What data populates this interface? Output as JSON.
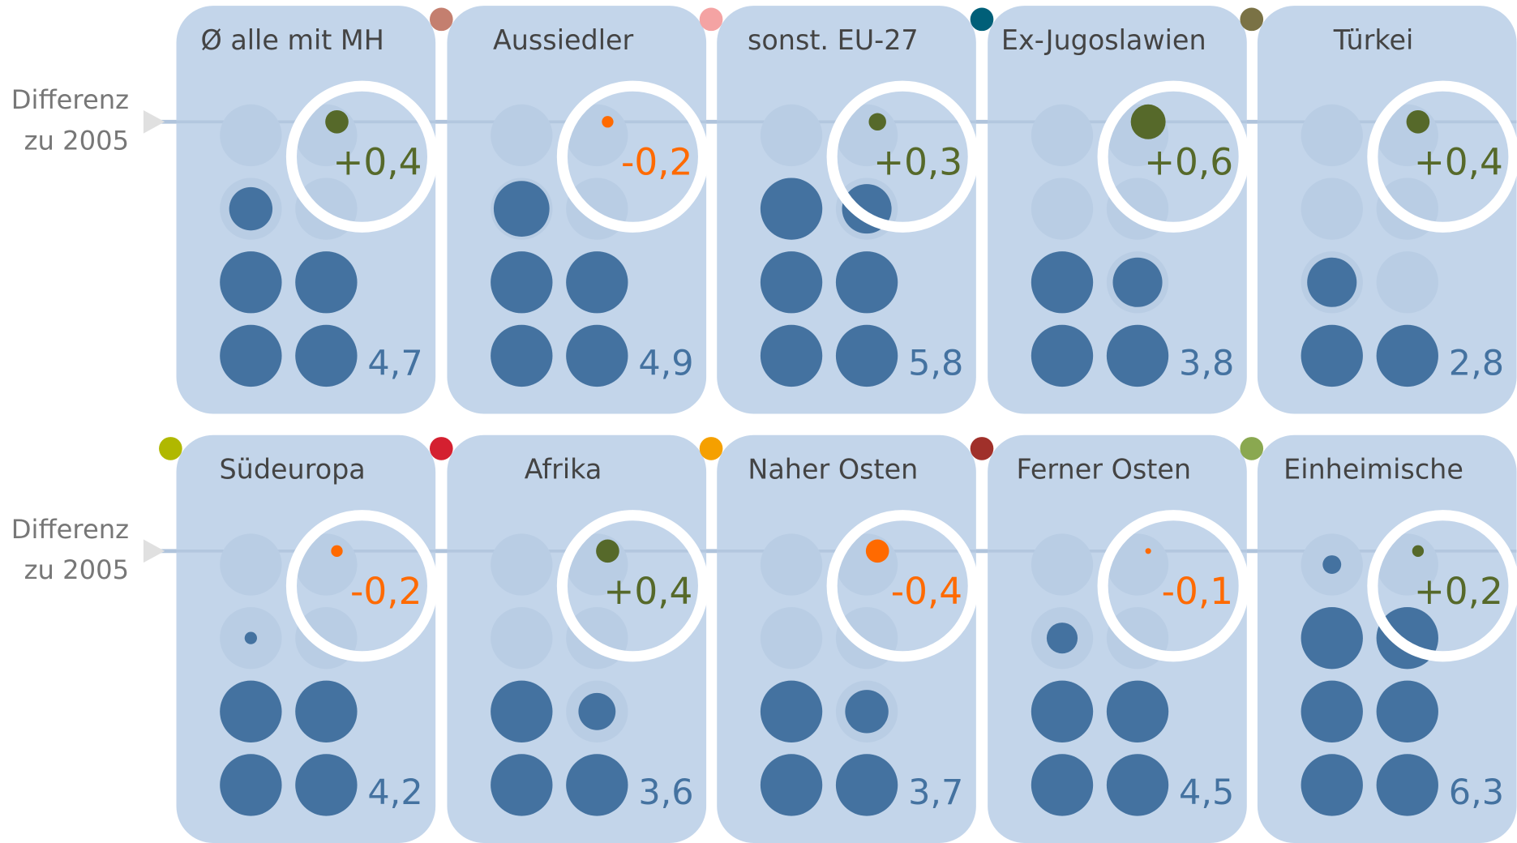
{
  "chart_data": {
    "type": "dotgrid",
    "row_label": [
      "Differenz",
      "zu 2005"
    ],
    "categories": [
      "Ø alle mit MH",
      "Aussiedler",
      "sonst. EU-27",
      "Ex-Jugoslawien",
      "Türkei",
      "Südeuropa",
      "Afrika",
      "Naher Osten",
      "Ferner Osten",
      "Einheimische"
    ],
    "colors": [
      null,
      "#c47f6f",
      "#f4a3a3",
      "#005f78",
      "#7a7245",
      "#b0b800",
      "#d42030",
      "#f5a000",
      "#a0302a",
      "#8aa850"
    ],
    "values": [
      4.7,
      4.9,
      5.8,
      3.8,
      2.8,
      4.2,
      3.6,
      3.7,
      4.5,
      6.3
    ],
    "value_labels": [
      "4,7",
      "4,9",
      "5,8",
      "3,8",
      "2,8",
      "4,2",
      "3,6",
      "3,7",
      "4,5",
      "6,3"
    ],
    "differences": [
      0.4,
      -0.2,
      0.3,
      0.6,
      0.4,
      -0.2,
      0.4,
      -0.4,
      -0.1,
      0.2
    ],
    "difference_labels": [
      "+0,4",
      "-0,2",
      "+0,3",
      "+0,6",
      "+0,4",
      "-0,2",
      "+0,4",
      "-0,4",
      "-0,1",
      "+0,2"
    ],
    "value_color": "#4472a0",
    "positive_color": "#56692a",
    "negative_color": "#ff6a00"
  }
}
